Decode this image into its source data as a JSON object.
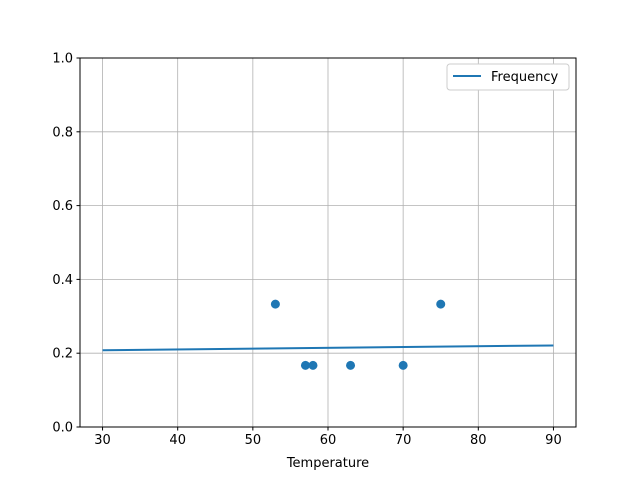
{
  "chart_data": {
    "type": "line+scatter",
    "title": "",
    "xlabel": "Temperature",
    "ylabel": "",
    "xlim": [
      27,
      93
    ],
    "ylim": [
      0,
      1
    ],
    "xticks": [
      "30",
      "40",
      "50",
      "60",
      "70",
      "80",
      "90"
    ],
    "yticks": [
      "0.0",
      "0.2",
      "0.4",
      "0.6",
      "0.8",
      "1.0"
    ],
    "grid": true,
    "legend_position": "top-right",
    "color": "#1f77b4",
    "series": [
      {
        "name": "Frequency",
        "kind": "line",
        "x": [
          30,
          90
        ],
        "y": [
          0.208,
          0.221
        ]
      },
      {
        "kind": "scatter",
        "x": [
          53,
          57,
          58,
          63,
          70,
          75
        ],
        "y": [
          0.333,
          0.167,
          0.167,
          0.167,
          0.167,
          0.333
        ]
      }
    ]
  }
}
